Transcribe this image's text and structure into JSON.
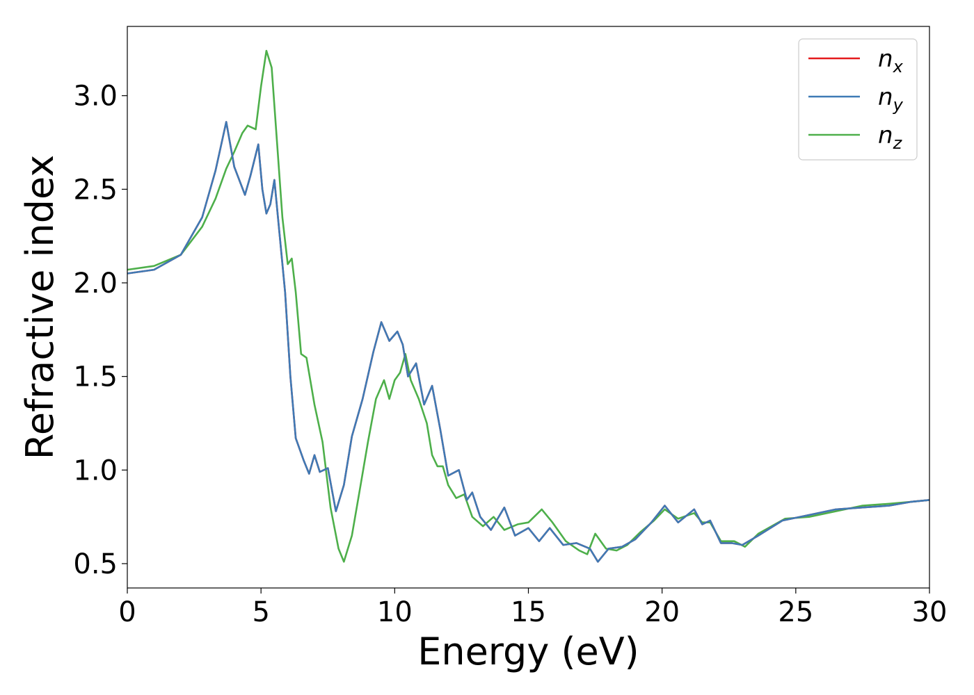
{
  "chart_data": {
    "type": "line",
    "title": "",
    "xlabel": "Energy (eV)",
    "ylabel": "Refractive index",
    "xlim": [
      0,
      30
    ],
    "ylim": [
      0.37,
      3.37
    ],
    "xticks": [
      "0",
      "5",
      "10",
      "15",
      "20",
      "25",
      "30"
    ],
    "yticks": [
      "0.5",
      "1.0",
      "1.5",
      "2.0",
      "2.5",
      "3.0"
    ],
    "grid": false,
    "legend_position": "top-right",
    "series": [
      {
        "name": "n",
        "subscript": "x",
        "color": "#e41a1c",
        "points": [
          [
            0,
            2.05
          ],
          [
            1.0,
            2.07
          ],
          [
            2.0,
            2.15
          ],
          [
            2.8,
            2.35
          ],
          [
            3.3,
            2.6
          ],
          [
            3.7,
            2.86
          ],
          [
            4.0,
            2.62
          ],
          [
            4.4,
            2.47
          ],
          [
            4.6,
            2.57
          ],
          [
            4.9,
            2.74
          ],
          [
            5.05,
            2.5
          ],
          [
            5.2,
            2.37
          ],
          [
            5.35,
            2.42
          ],
          [
            5.5,
            2.55
          ],
          [
            5.7,
            2.25
          ],
          [
            5.9,
            1.95
          ],
          [
            6.1,
            1.5
          ],
          [
            6.3,
            1.17
          ],
          [
            6.6,
            1.05
          ],
          [
            6.8,
            0.98
          ],
          [
            7.0,
            1.08
          ],
          [
            7.2,
            0.99
          ],
          [
            7.5,
            1.01
          ],
          [
            7.8,
            0.78
          ],
          [
            8.1,
            0.92
          ],
          [
            8.4,
            1.18
          ],
          [
            8.8,
            1.38
          ],
          [
            9.2,
            1.63
          ],
          [
            9.5,
            1.79
          ],
          [
            9.8,
            1.69
          ],
          [
            10.1,
            1.74
          ],
          [
            10.3,
            1.67
          ],
          [
            10.5,
            1.5
          ],
          [
            10.8,
            1.57
          ],
          [
            11.1,
            1.35
          ],
          [
            11.4,
            1.45
          ],
          [
            11.7,
            1.22
          ],
          [
            12.0,
            0.97
          ],
          [
            12.4,
            1.0
          ],
          [
            12.7,
            0.84
          ],
          [
            12.9,
            0.88
          ],
          [
            13.2,
            0.75
          ],
          [
            13.6,
            0.68
          ],
          [
            14.1,
            0.8
          ],
          [
            14.5,
            0.65
          ],
          [
            15.0,
            0.69
          ],
          [
            15.4,
            0.62
          ],
          [
            15.8,
            0.69
          ],
          [
            16.3,
            0.6
          ],
          [
            16.8,
            0.61
          ],
          [
            17.3,
            0.58
          ],
          [
            17.6,
            0.51
          ],
          [
            18.0,
            0.58
          ],
          [
            18.5,
            0.59
          ],
          [
            19.0,
            0.63
          ],
          [
            19.6,
            0.72
          ],
          [
            20.1,
            0.81
          ],
          [
            20.6,
            0.72
          ],
          [
            21.2,
            0.79
          ],
          [
            21.5,
            0.71
          ],
          [
            21.8,
            0.73
          ],
          [
            22.2,
            0.61
          ],
          [
            22.6,
            0.61
          ],
          [
            23.0,
            0.6
          ],
          [
            23.6,
            0.65
          ],
          [
            24.5,
            0.73
          ],
          [
            25.5,
            0.76
          ],
          [
            26.5,
            0.79
          ],
          [
            27.5,
            0.8
          ],
          [
            28.5,
            0.81
          ],
          [
            29.3,
            0.83
          ],
          [
            30,
            0.84
          ]
        ]
      },
      {
        "name": "n",
        "subscript": "y",
        "color": "#3e7ab5",
        "points": [
          [
            0,
            2.05
          ],
          [
            1.0,
            2.07
          ],
          [
            2.0,
            2.15
          ],
          [
            2.8,
            2.35
          ],
          [
            3.3,
            2.6
          ],
          [
            3.7,
            2.86
          ],
          [
            4.0,
            2.62
          ],
          [
            4.4,
            2.47
          ],
          [
            4.6,
            2.57
          ],
          [
            4.9,
            2.74
          ],
          [
            5.05,
            2.5
          ],
          [
            5.2,
            2.37
          ],
          [
            5.35,
            2.42
          ],
          [
            5.5,
            2.55
          ],
          [
            5.7,
            2.25
          ],
          [
            5.9,
            1.95
          ],
          [
            6.1,
            1.5
          ],
          [
            6.3,
            1.17
          ],
          [
            6.6,
            1.05
          ],
          [
            6.8,
            0.98
          ],
          [
            7.0,
            1.08
          ],
          [
            7.2,
            0.99
          ],
          [
            7.5,
            1.01
          ],
          [
            7.8,
            0.78
          ],
          [
            8.1,
            0.92
          ],
          [
            8.4,
            1.18
          ],
          [
            8.8,
            1.38
          ],
          [
            9.2,
            1.63
          ],
          [
            9.5,
            1.79
          ],
          [
            9.8,
            1.69
          ],
          [
            10.1,
            1.74
          ],
          [
            10.3,
            1.67
          ],
          [
            10.5,
            1.5
          ],
          [
            10.8,
            1.57
          ],
          [
            11.1,
            1.35
          ],
          [
            11.4,
            1.45
          ],
          [
            11.7,
            1.22
          ],
          [
            12.0,
            0.97
          ],
          [
            12.4,
            1.0
          ],
          [
            12.7,
            0.84
          ],
          [
            12.9,
            0.88
          ],
          [
            13.2,
            0.75
          ],
          [
            13.6,
            0.68
          ],
          [
            14.1,
            0.8
          ],
          [
            14.5,
            0.65
          ],
          [
            15.0,
            0.69
          ],
          [
            15.4,
            0.62
          ],
          [
            15.8,
            0.69
          ],
          [
            16.3,
            0.6
          ],
          [
            16.8,
            0.61
          ],
          [
            17.3,
            0.58
          ],
          [
            17.6,
            0.51
          ],
          [
            18.0,
            0.58
          ],
          [
            18.5,
            0.59
          ],
          [
            19.0,
            0.63
          ],
          [
            19.6,
            0.72
          ],
          [
            20.1,
            0.81
          ],
          [
            20.6,
            0.72
          ],
          [
            21.2,
            0.79
          ],
          [
            21.5,
            0.71
          ],
          [
            21.8,
            0.73
          ],
          [
            22.2,
            0.61
          ],
          [
            22.6,
            0.61
          ],
          [
            23.0,
            0.6
          ],
          [
            23.6,
            0.65
          ],
          [
            24.5,
            0.73
          ],
          [
            25.5,
            0.76
          ],
          [
            26.5,
            0.79
          ],
          [
            27.5,
            0.8
          ],
          [
            28.5,
            0.81
          ],
          [
            29.3,
            0.83
          ],
          [
            30,
            0.84
          ]
        ]
      },
      {
        "name": "n",
        "subscript": "z",
        "color": "#4daf4a",
        "points": [
          [
            0,
            2.07
          ],
          [
            1.0,
            2.09
          ],
          [
            2.0,
            2.15
          ],
          [
            2.8,
            2.3
          ],
          [
            3.3,
            2.45
          ],
          [
            3.7,
            2.61
          ],
          [
            4.0,
            2.7
          ],
          [
            4.3,
            2.8
          ],
          [
            4.5,
            2.84
          ],
          [
            4.8,
            2.82
          ],
          [
            5.0,
            3.05
          ],
          [
            5.2,
            3.24
          ],
          [
            5.4,
            3.15
          ],
          [
            5.6,
            2.75
          ],
          [
            5.8,
            2.35
          ],
          [
            6.0,
            2.1
          ],
          [
            6.15,
            2.13
          ],
          [
            6.3,
            1.95
          ],
          [
            6.5,
            1.62
          ],
          [
            6.7,
            1.6
          ],
          [
            7.0,
            1.35
          ],
          [
            7.3,
            1.15
          ],
          [
            7.6,
            0.8
          ],
          [
            7.9,
            0.58
          ],
          [
            8.1,
            0.51
          ],
          [
            8.4,
            0.65
          ],
          [
            8.7,
            0.9
          ],
          [
            9.0,
            1.15
          ],
          [
            9.3,
            1.38
          ],
          [
            9.6,
            1.48
          ],
          [
            9.8,
            1.38
          ],
          [
            10.0,
            1.48
          ],
          [
            10.2,
            1.52
          ],
          [
            10.4,
            1.62
          ],
          [
            10.6,
            1.48
          ],
          [
            10.9,
            1.38
          ],
          [
            11.2,
            1.25
          ],
          [
            11.4,
            1.08
          ],
          [
            11.6,
            1.02
          ],
          [
            11.8,
            1.02
          ],
          [
            12.0,
            0.92
          ],
          [
            12.3,
            0.85
          ],
          [
            12.6,
            0.87
          ],
          [
            12.9,
            0.75
          ],
          [
            13.3,
            0.7
          ],
          [
            13.7,
            0.75
          ],
          [
            14.1,
            0.68
          ],
          [
            14.6,
            0.71
          ],
          [
            15.0,
            0.72
          ],
          [
            15.5,
            0.79
          ],
          [
            15.9,
            0.72
          ],
          [
            16.4,
            0.62
          ],
          [
            16.9,
            0.57
          ],
          [
            17.2,
            0.55
          ],
          [
            17.5,
            0.66
          ],
          [
            17.9,
            0.58
          ],
          [
            18.3,
            0.57
          ],
          [
            18.7,
            0.6
          ],
          [
            19.2,
            0.67
          ],
          [
            19.7,
            0.73
          ],
          [
            20.1,
            0.79
          ],
          [
            20.6,
            0.74
          ],
          [
            21.2,
            0.77
          ],
          [
            21.5,
            0.72
          ],
          [
            21.8,
            0.72
          ],
          [
            22.2,
            0.62
          ],
          [
            22.7,
            0.62
          ],
          [
            23.1,
            0.59
          ],
          [
            23.6,
            0.66
          ],
          [
            24.6,
            0.74
          ],
          [
            25.5,
            0.75
          ],
          [
            26.5,
            0.78
          ],
          [
            27.5,
            0.81
          ],
          [
            28.5,
            0.82
          ],
          [
            29.3,
            0.83
          ],
          [
            30,
            0.84
          ]
        ]
      }
    ]
  }
}
